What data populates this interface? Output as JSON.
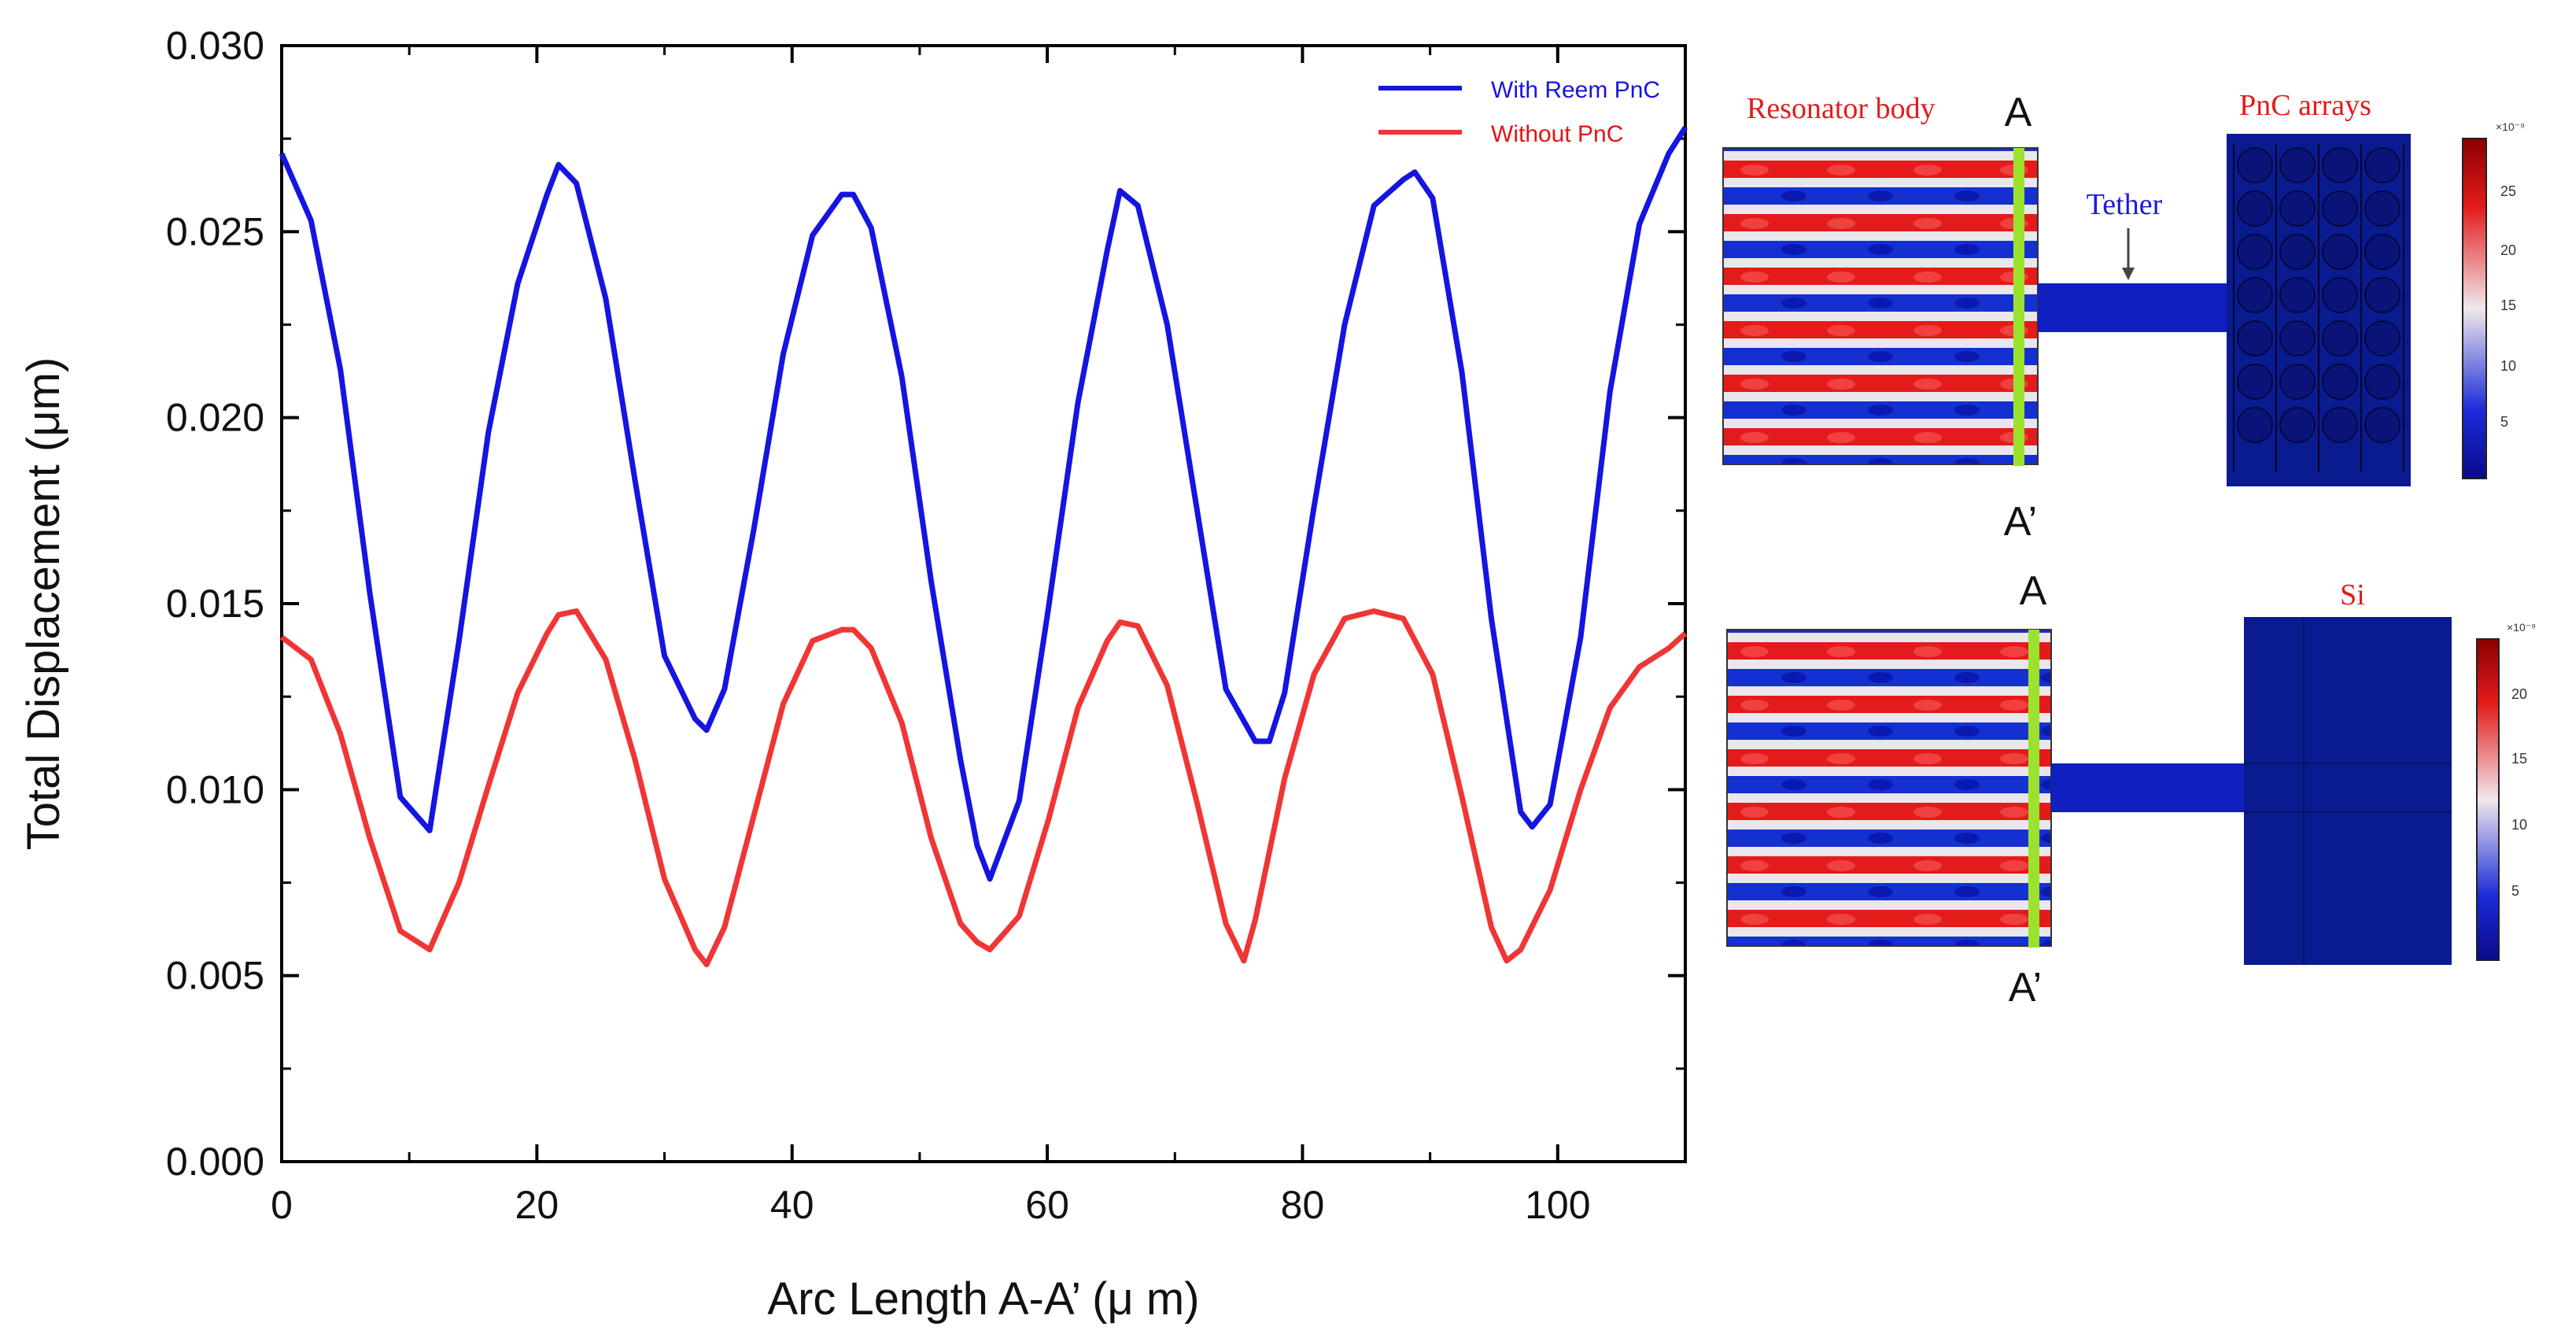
{
  "chart_data": {
    "type": "line",
    "title": "",
    "xlabel": "Arc Length A-A’ (μ m)",
    "ylabel": "Total Displacement (μm)",
    "xlim": [
      0,
      110
    ],
    "ylim": [
      0,
      0.03
    ],
    "x_ticks": [
      0,
      20,
      40,
      60,
      80,
      100
    ],
    "x_tick_labels": [
      "0",
      "20",
      "40",
      "60",
      "80",
      "100"
    ],
    "y_ticks": [
      0,
      0.005,
      0.01,
      0.015,
      0.02,
      0.025,
      0.03
    ],
    "y_tick_labels": [
      "0.000",
      "0.005",
      "0.010",
      "0.015",
      "0.020",
      "0.025",
      "0.030"
    ],
    "legend_position": "top-right",
    "grid": false,
    "series": [
      {
        "name": "With Reem PnC",
        "color": "#1515e0",
        "x": [
          0,
          2.3,
          4.6,
          6.9,
          9.3,
          11.6,
          13.9,
          16.2,
          18.5,
          20.8,
          21.7,
          23.1,
          25.4,
          27.7,
          30.0,
          32.4,
          33.3,
          34.7,
          37.0,
          39.3,
          41.6,
          43.9,
          44.8,
          46.2,
          48.6,
          50.9,
          53.2,
          54.5,
          55.5,
          57.8,
          60.1,
          62.4,
          64.7,
          65.7,
          67.1,
          69.4,
          71.7,
          74.0,
          76.3,
          77.4,
          78.6,
          80.9,
          83.3,
          85.6,
          87.9,
          88.8,
          90.2,
          92.5,
          94.8,
          97.1,
          98.0,
          99.4,
          101.8,
          104.1,
          106.4,
          108.7,
          110
        ],
        "values": [
          0.0271,
          0.0253,
          0.0213,
          0.0153,
          0.0098,
          0.0089,
          0.014,
          0.0196,
          0.0236,
          0.026,
          0.0268,
          0.0263,
          0.0232,
          0.0183,
          0.0136,
          0.0119,
          0.0116,
          0.0127,
          0.017,
          0.0217,
          0.0249,
          0.026,
          0.026,
          0.0251,
          0.0211,
          0.0156,
          0.0108,
          0.0085,
          0.0076,
          0.0097,
          0.0149,
          0.0204,
          0.0245,
          0.0261,
          0.0257,
          0.0225,
          0.0176,
          0.0127,
          0.0113,
          0.0113,
          0.0126,
          0.0176,
          0.0225,
          0.0257,
          0.0264,
          0.0266,
          0.0259,
          0.0212,
          0.0146,
          0.0094,
          0.009,
          0.0096,
          0.0141,
          0.0207,
          0.0252,
          0.0271,
          0.0278
        ]
      },
      {
        "name": "Without PnC",
        "color": "#f03535",
        "x": [
          0,
          2.3,
          4.6,
          6.9,
          9.3,
          11.6,
          13.9,
          16.2,
          18.5,
          20.8,
          21.7,
          23.1,
          25.4,
          27.7,
          30.0,
          32.4,
          33.3,
          34.7,
          37.0,
          39.3,
          41.6,
          43.9,
          44.8,
          46.2,
          48.6,
          50.9,
          53.2,
          54.5,
          55.5,
          57.8,
          60.1,
          62.4,
          64.7,
          65.7,
          67.1,
          69.4,
          71.7,
          74.0,
          75.4,
          76.3,
          78.6,
          80.9,
          83.3,
          85.6,
          87.9,
          90.2,
          92.5,
          94.8,
          96.0,
          97.1,
          99.4,
          101.8,
          104.1,
          106.4,
          108.7,
          110
        ],
        "values": [
          0.0141,
          0.0135,
          0.0115,
          0.0087,
          0.0062,
          0.0057,
          0.0075,
          0.0101,
          0.0126,
          0.0142,
          0.0147,
          0.0148,
          0.0135,
          0.0108,
          0.0076,
          0.0057,
          0.0053,
          0.0063,
          0.0093,
          0.0123,
          0.014,
          0.0143,
          0.0143,
          0.0138,
          0.0118,
          0.0087,
          0.0064,
          0.0059,
          0.0057,
          0.0066,
          0.0092,
          0.0122,
          0.014,
          0.0145,
          0.0144,
          0.0128,
          0.0097,
          0.0064,
          0.0054,
          0.0065,
          0.0103,
          0.0131,
          0.0146,
          0.0148,
          0.0146,
          0.0131,
          0.0098,
          0.0063,
          0.0054,
          0.0057,
          0.0073,
          0.01,
          0.0122,
          0.0133,
          0.0138,
          0.0142
        ]
      }
    ]
  },
  "diagrams": {
    "top": {
      "title_left": "Resonator body",
      "title_right": "PnC arrays",
      "tether_label": "Tether",
      "cut_top": "A",
      "cut_bottom": "A’",
      "colorbar_exp": "×10⁻⁹",
      "colorbar_labels": [
        "25",
        "20",
        "15",
        "10",
        "5"
      ]
    },
    "bottom": {
      "title_right": "Si",
      "cut_top": "A",
      "cut_bottom": "A’",
      "colorbar_exp": "×10⁻⁹",
      "colorbar_labels": [
        "20",
        "15",
        "10",
        "5"
      ]
    }
  },
  "colors": {
    "field_hot": "#e31b1b",
    "field_cold": "#0a1fc8",
    "field_mid": "#e8e8ee",
    "substrate": "#0a1a8f",
    "cut_line": "#9be22d",
    "title_red": "#e31b1b",
    "tether_blue": "#1b1bd8"
  }
}
